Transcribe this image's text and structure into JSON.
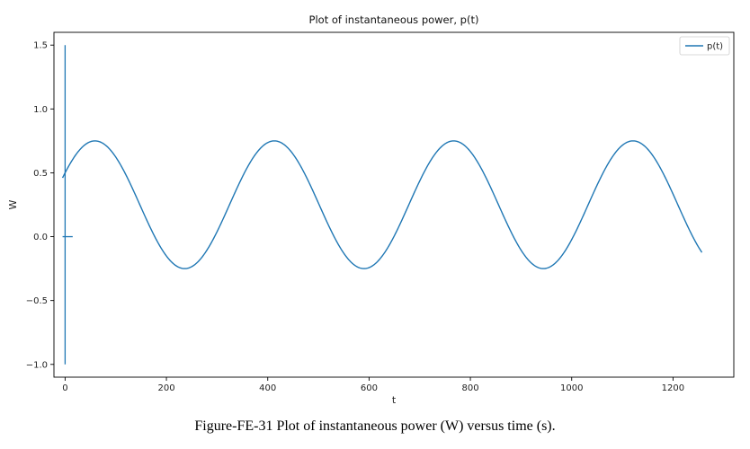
{
  "chart_data": {
    "type": "line",
    "title": "Plot of instantaneous power, p(t)",
    "xlabel": "t",
    "ylabel": "W",
    "xlim": [
      -22,
      1320
    ],
    "ylim": [
      -1.1,
      1.6
    ],
    "xticks": [
      0,
      200,
      400,
      600,
      800,
      1000,
      1200
    ],
    "xtick_labels": [
      "0",
      "200",
      "400",
      "600",
      "800",
      "1000",
      "1200"
    ],
    "yticks": [
      -1.0,
      -0.5,
      0.0,
      0.5,
      1.0,
      1.5
    ],
    "ytick_labels": [
      "−1.0",
      "−0.5",
      "0.0",
      "0.5",
      "1.0",
      "1.5"
    ],
    "grid": false,
    "legend_position": "top-right",
    "series": [
      {
        "name": "p(t)",
        "color": "#1f77b4",
        "formula": "0.25 + 0.5*cos(2*pi*(t - 59)/354)",
        "x_range": [
          -5,
          1257
        ],
        "y_min": -0.25,
        "y_max": 0.75,
        "period": 354,
        "first_peak_t": 59
      }
    ],
    "annotations": [
      {
        "type": "vertical-line",
        "x": 0,
        "y_from": -1.0,
        "y_to": 1.5,
        "color": "#1f77b4"
      },
      {
        "type": "horizontal-segment",
        "y": 0,
        "x_from": -5,
        "x_to": 15,
        "color": "#1f77b4"
      }
    ]
  },
  "caption": "Figure-FE-31 Plot of instantaneous power (W) versus time (s)."
}
